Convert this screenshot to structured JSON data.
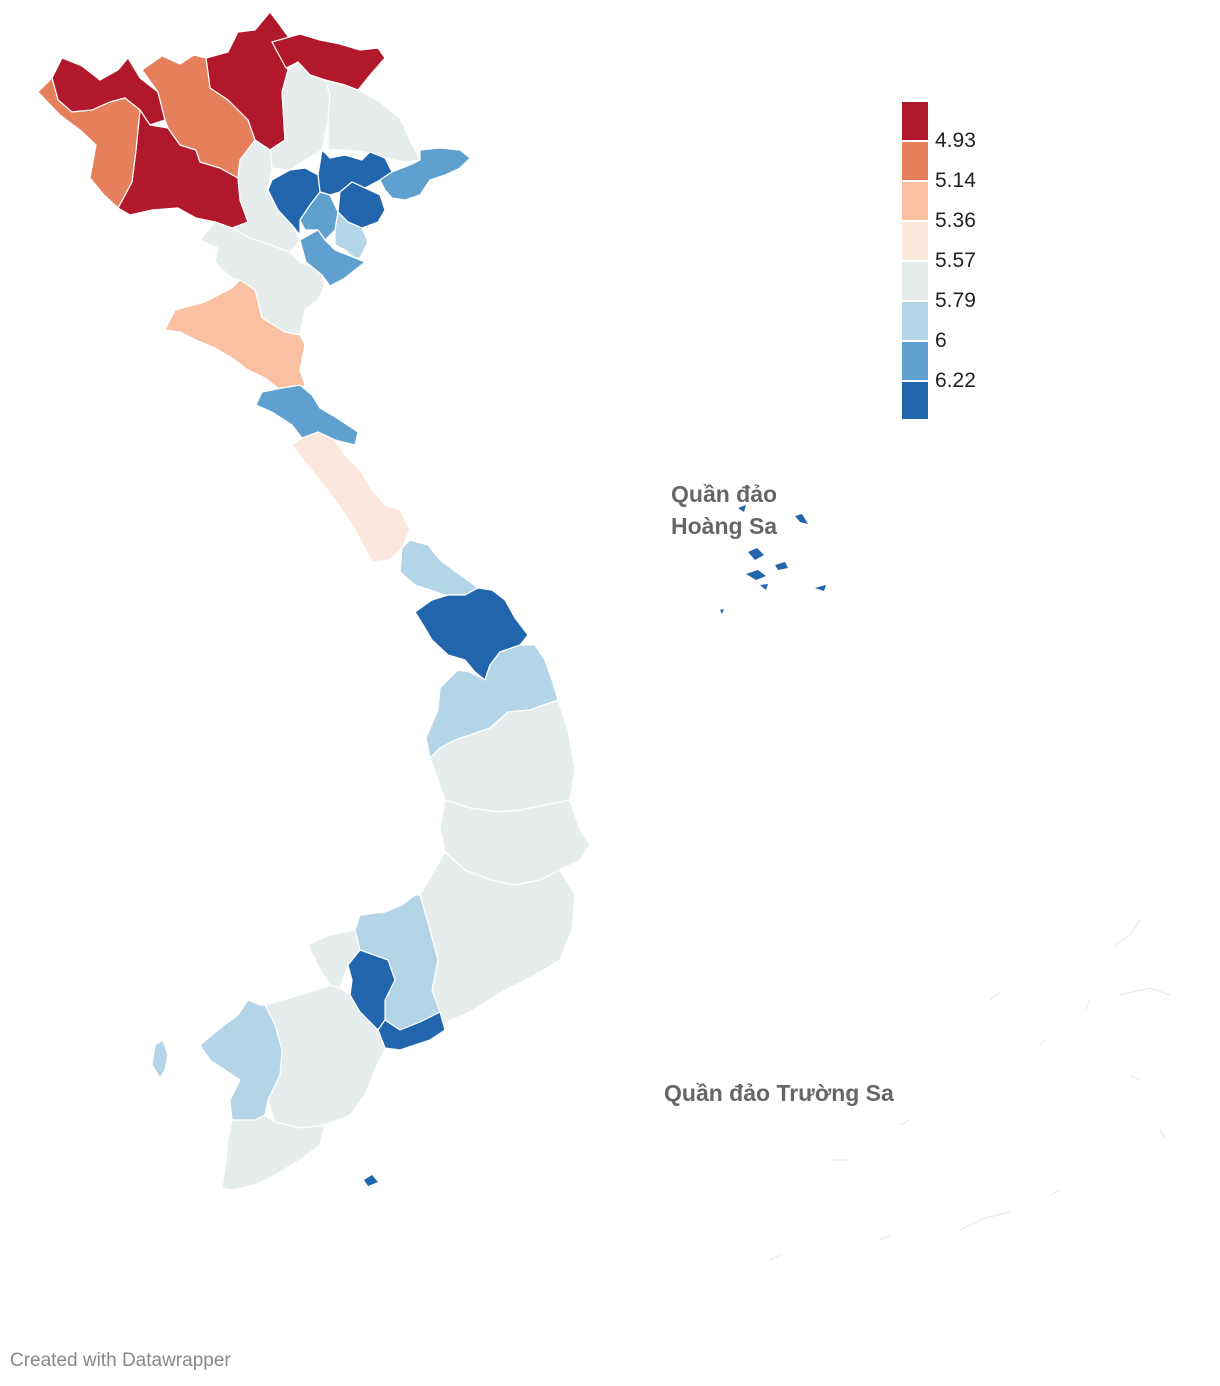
{
  "legend": {
    "colors": [
      "#b2182b",
      "#e6805c",
      "#f9c0a2",
      "#fbe7db",
      "#e7edec",
      "#b4d5e8",
      "#5fa0ce",
      "#2166ac"
    ],
    "thresholds": [
      "4.93",
      "5.14",
      "5.36",
      "5.57",
      "5.79",
      "6",
      "6.22"
    ]
  },
  "labels": {
    "paracel_line1": "Quần đảo",
    "paracel_line2": "Hoàng Sa",
    "spratly": "Quần đảo Trường Sa"
  },
  "footer": "Created with Datawrapper"
}
